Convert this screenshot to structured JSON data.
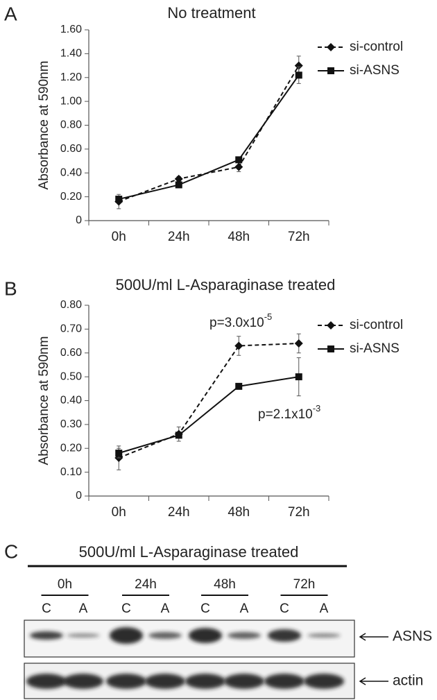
{
  "panels": [
    "A",
    "B",
    "C"
  ],
  "chart_data": [
    {
      "type": "line",
      "title": "No treatment",
      "y_label": "Absorbance at 590nm",
      "categories": [
        "0h",
        "24h",
        "48h",
        "72h"
      ],
      "ylim": [
        0,
        1.6
      ],
      "yticks": [
        0,
        {
          "value": 0.2,
          "label": "0.20"
        },
        {
          "value": 0.4,
          "label": "0.40"
        },
        {
          "value": 0.6,
          "label": "0.60"
        },
        {
          "value": 0.8,
          "label": "0.80"
        },
        {
          "value": 1.0,
          "label": "1.00"
        },
        {
          "value": 1.2,
          "label": "1.20"
        },
        {
          "value": 1.4,
          "label": "1.40"
        },
        {
          "value": 1.6,
          "label": "1.60"
        }
      ],
      "grid": false,
      "legend": "upper right",
      "series": [
        {
          "name": "si-control",
          "color": "#111111",
          "dash": "dashed",
          "marker": "diamond",
          "values": [
            0.16,
            0.35,
            0.45,
            1.3
          ],
          "errors": [
            0.06,
            0.02,
            0.04,
            0.08
          ]
        },
        {
          "name": "si-ASNS",
          "color": "#111111",
          "dash": "solid",
          "marker": "square",
          "values": [
            0.18,
            0.3,
            0.51,
            1.22
          ],
          "errors": [
            0.02,
            0.01,
            0.02,
            0.07
          ]
        }
      ]
    },
    {
      "type": "line",
      "title": "500U/ml L-Asparaginase treated",
      "y_label": "Absorbance at 590nm",
      "categories": [
        "0h",
        "24h",
        "48h",
        "72h"
      ],
      "ylim": [
        0,
        0.8
      ],
      "yticks": [
        0,
        {
          "value": 0.1,
          "label": "0.10"
        },
        {
          "value": 0.2,
          "label": "0.20"
        },
        {
          "value": 0.3,
          "label": "0.30"
        },
        {
          "value": 0.4,
          "label": "0.40"
        },
        {
          "value": 0.5,
          "label": "0.50"
        },
        {
          "value": 0.6,
          "label": "0.60"
        },
        {
          "value": 0.7,
          "label": "0.70"
        },
        {
          "value": 0.8,
          "label": "0.80"
        }
      ],
      "grid": false,
      "legend": "upper right",
      "series": [
        {
          "name": "si-control",
          "color": "#111111",
          "dash": "dashed",
          "marker": "diamond",
          "values": [
            0.16,
            0.26,
            0.63,
            0.64
          ],
          "errors": [
            0.05,
            0.03,
            0.04,
            0.04
          ]
        },
        {
          "name": "si-ASNS",
          "color": "#111111",
          "dash": "solid",
          "marker": "square",
          "values": [
            0.18,
            0.255,
            0.46,
            0.5
          ],
          "errors": [
            0.02,
            0.01,
            0.01,
            0.08
          ]
        }
      ],
      "annotations": [
        {
          "text": "p=3.0x10",
          "sup": "-5"
        },
        {
          "text": "p=2.1x10",
          "sup": "-3"
        }
      ]
    }
  ],
  "blot": {
    "title": "500U/ml L-Asparaginase treated",
    "timepoints": [
      "0h",
      "24h",
      "48h",
      "72h"
    ],
    "lanes": [
      "C",
      "A",
      "C",
      "A",
      "C",
      "A",
      "C",
      "A"
    ],
    "rows": [
      "ASNS",
      "actin"
    ]
  }
}
